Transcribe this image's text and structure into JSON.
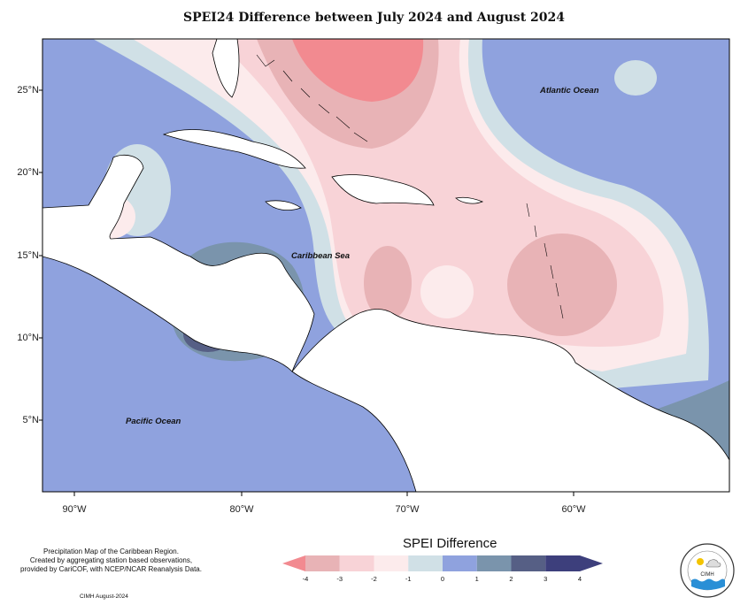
{
  "title": "SPEI24 Difference between July 2024 and August 2024",
  "latitude_labels": [
    "25°N",
    "20°N",
    "15°N",
    "10°N",
    "5°N"
  ],
  "longitude_labels": [
    "90°W",
    "80°W",
    "70°W",
    "60°W"
  ],
  "regions": {
    "atlantic": "Atlantic Ocean",
    "caribbean": "Caribbean Sea",
    "pacific": "Pacific Ocean"
  },
  "legend": {
    "title": "SPEI Difference",
    "ticks": [
      "-4",
      "-3",
      "-2",
      "-1",
      "0",
      "1",
      "2",
      "3",
      "4"
    ],
    "colors": [
      "#f28a90",
      "#e8b3b6",
      "#f8d3d7",
      "#fcebec",
      "#d0e0e6",
      "#8fa2de",
      "#7a94ac",
      "#565f85",
      "#3d3f7c"
    ]
  },
  "note": {
    "line1": "Precipitation Map of the Caribbean Region.",
    "line2": "Created by aggregating station based observations,",
    "line3": "provided by CariCOF, with NCEP/NCAR Reanalysis Data."
  },
  "credit": "CIMH August-2024",
  "logo": {
    "name": "CIMH"
  }
}
